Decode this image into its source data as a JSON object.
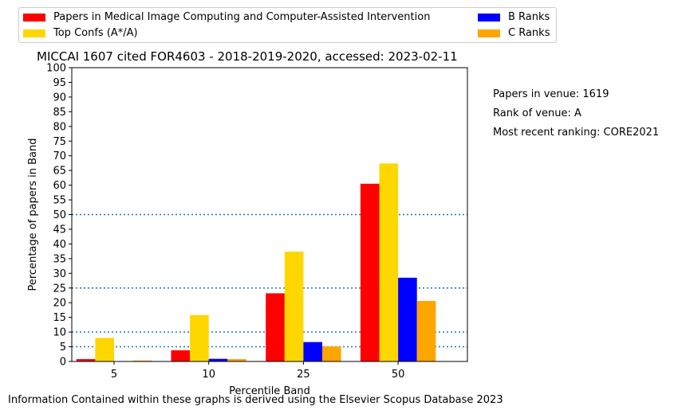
{
  "chart_data": {
    "type": "bar",
    "title": "MICCAI 1607 cited FOR4603 - 2018-2019-2020, accessed: 2023-02-11",
    "xlabel": "Percentile Band",
    "ylabel": "Percentage of papers in Band",
    "categories": [
      "5",
      "10",
      "25",
      "50"
    ],
    "ylim": [
      0,
      100
    ],
    "yticks": [
      "0",
      "5",
      "10",
      "15",
      "20",
      "25",
      "30",
      "35",
      "40",
      "45",
      "50",
      "55",
      "60",
      "65",
      "70",
      "75",
      "80",
      "85",
      "90",
      "95",
      "100"
    ],
    "reference_lines": [
      5,
      10,
      25,
      50
    ],
    "legend_position": "top",
    "series": [
      {
        "name": "Papers in Medical Image Computing and Computer-Assisted Intervention",
        "color": "#ff0000",
        "values": [
          0.8,
          3.8,
          23.2,
          60.5
        ]
      },
      {
        "name": "Top Confs (A*/A)",
        "color": "#ffd700",
        "values": [
          8.0,
          15.8,
          37.4,
          67.4
        ]
      },
      {
        "name": "B Ranks",
        "color": "#0000ff",
        "values": [
          0.0,
          0.9,
          6.6,
          28.5
        ]
      },
      {
        "name": "C Ranks",
        "color": "#ffa500",
        "values": [
          0.3,
          0.8,
          5.1,
          20.6
        ]
      }
    ]
  },
  "info": {
    "papers_in_venue": "Papers in venue: 1619",
    "rank_of_venue": "Rank of venue: A",
    "recent_ranking": "Most recent ranking: CORE2021"
  },
  "footer": "Information Contained within these graphs is derived using the Elsevier Scopus Database 2023"
}
